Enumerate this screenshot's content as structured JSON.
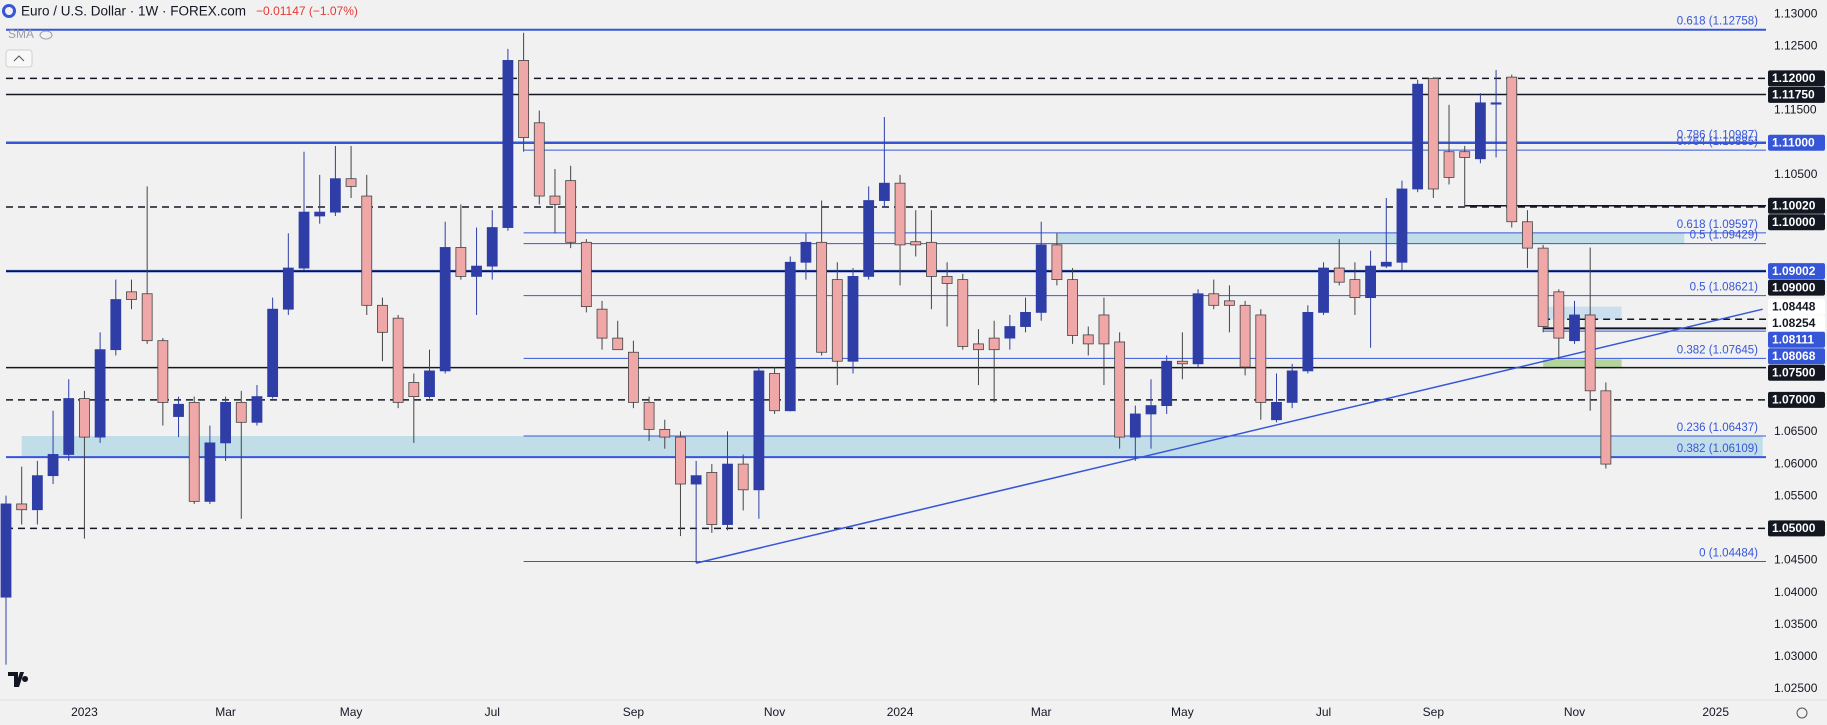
{
  "chart_data": {
    "type": "candlestick",
    "title": "Euro / U.S. Dollar · 1W · FOREX.com",
    "change": "−0.01147 (−1.07%)",
    "indicator": "SMA",
    "up_color": "#2e3ea6",
    "down_color": "#efa7a7",
    "categories": [
      null,
      null,
      null,
      null,
      null,
      "2023",
      null,
      null,
      null,
      null,
      null,
      null,
      null,
      null,
      "Mar",
      null,
      null,
      null,
      null,
      null,
      null,
      null,
      "May",
      null,
      null,
      null,
      null,
      null,
      null,
      null,
      null,
      "Jul",
      null,
      null,
      null,
      null,
      null,
      null,
      null,
      null,
      "Sep",
      null,
      null,
      null,
      null,
      null,
      null,
      null,
      null,
      "Nov",
      null,
      null,
      null,
      null,
      null,
      null,
      null,
      "2024",
      null,
      null,
      null,
      null,
      null,
      null,
      null,
      null,
      "Mar",
      null,
      null,
      null,
      null,
      null,
      null,
      null,
      null,
      "May",
      null,
      null,
      null,
      null,
      null,
      null,
      null,
      null,
      "Jul",
      null,
      null,
      null,
      null,
      null,
      null,
      "Sep",
      null,
      null,
      null,
      null,
      null,
      null,
      null,
      null,
      "Nov",
      null,
      null,
      null,
      null,
      null,
      null,
      null,
      null,
      "2025",
      null,
      null
    ],
    "open": [
      1.0393,
      1.0538,
      1.0529,
      1.0582,
      1.0615,
      1.0702,
      1.0642,
      1.0778,
      1.0868,
      1.0865,
      1.0792,
      1.0674,
      1.0696,
      1.0542,
      1.0633,
      1.0696,
      1.0665,
      1.0705,
      1.0841,
      1.0905,
      1.0986,
      1.0992,
      1.1044,
      1.1017,
      1.0847,
      1.0827,
      1.0727,
      1.0705,
      1.0745,
      1.0937,
      1.0892,
      1.0908,
      1.0968,
      1.1228,
      1.1131,
      1.1017,
      1.1041,
      1.0945,
      1.0841,
      1.0796,
      1.0774,
      1.0696,
      1.0654,
      1.0642,
      1.0569,
      1.0587,
      1.0506,
      1.06,
      1.056,
      1.0741,
      1.0683,
      1.0914,
      1.0945,
      1.0887,
      1.076,
      1.0892,
      1.101,
      1.1037,
      1.0946,
      1.0945,
      1.0892,
      1.0887,
      1.0787,
      1.0796,
      1.0796,
      1.0814,
      1.0836,
      1.0941,
      1.0887,
      1.0801,
      1.0832,
      1.079,
      1.0642,
      1.0678,
      1.0691,
      1.076,
      1.0756,
      1.0865,
      1.0854,
      1.0847,
      1.0832,
      1.0669,
      1.0696,
      1.0745,
      1.0836,
      1.0905,
      1.0887,
      1.0859,
      1.0908,
      1.0914,
      1.1028,
      1.12,
      1.1086,
      1.1086,
      1.1075,
      1.116,
      1.1202,
      1.0977,
      1.0936,
      1.0868,
      1.0792,
      1.0832,
      1.0714,
      null,
      null,
      null,
      null,
      null,
      null,
      null,
      null,
      null
    ],
    "high": [
      1.0551,
      1.0596,
      1.0605,
      1.0683,
      1.0732,
      1.0714,
      1.0805,
      1.0887,
      1.0887,
      1.1032,
      1.0796,
      1.0705,
      1.0705,
      1.066,
      1.0705,
      1.0714,
      1.0723,
      1.0859,
      1.0959,
      1.1086,
      1.105,
      1.1095,
      1.1095,
      1.105,
      1.0859,
      1.0832,
      1.0741,
      1.0778,
      1.0977,
      1.1004,
      1.0968,
      1.0995,
      1.1246,
      1.1271,
      1.115,
      1.1059,
      1.1064,
      1.095,
      1.0854,
      1.0823,
      1.0792,
      1.0705,
      1.0669,
      1.0651,
      1.0605,
      1.06,
      1.0651,
      1.0615,
      1.0751,
      1.0751,
      1.0923,
      1.0959,
      1.101,
      1.0914,
      1.0905,
      1.1032,
      1.114,
      1.105,
      1.0995,
      1.0995,
      1.0914,
      1.0896,
      1.081,
      1.0823,
      1.0832,
      1.0859,
      1.0977,
      1.0959,
      1.0905,
      1.0814,
      1.0859,
      1.0805,
      1.0691,
      1.0732,
      1.0769,
      1.0805,
      1.0872,
      1.0887,
      1.0878,
      1.0854,
      1.0841,
      1.0741,
      1.0756,
      1.0847,
      1.0914,
      1.095,
      1.0914,
      1.0932,
      1.1014,
      1.1041,
      1.1198,
      1.1202,
      1.1159,
      1.1095,
      1.1177,
      1.1213,
      1.1206,
      1.0995,
      1.0941,
      1.0872,
      1.0854,
      1.0937,
      1.0727,
      null,
      null,
      null,
      null,
      null,
      null,
      null,
      null,
      null
    ],
    "low": [
      1.0288,
      1.0506,
      1.0506,
      1.0569,
      1.0605,
      1.0484,
      1.0633,
      1.0769,
      1.0841,
      1.0787,
      1.066,
      1.0642,
      1.0538,
      1.0538,
      1.0605,
      1.0515,
      1.066,
      1.0702,
      1.0832,
      1.0901,
      1.0974,
      1.0986,
      1.1014,
      1.0832,
      1.076,
      1.0687,
      1.0633,
      1.0702,
      1.0741,
      1.0887,
      1.0832,
      1.0887,
      1.0963,
      1.1086,
      1.1004,
      1.0959,
      1.0936,
      1.0836,
      1.0778,
      1.0778,
      1.0687,
      1.0636,
      1.0624,
      1.0488,
      1.0446,
      1.0493,
      1.0497,
      1.0528,
      1.0515,
      1.0678,
      1.0682,
      1.0887,
      1.0769,
      1.0723,
      1.0741,
      1.0887,
      1.0999,
      1.0878,
      1.0923,
      1.0841,
      1.0814,
      1.0778,
      1.0723,
      1.0696,
      1.0778,
      1.0805,
      1.0823,
      1.0878,
      1.0787,
      1.0769,
      1.0723,
      1.0624,
      1.0605,
      1.0624,
      1.0678,
      1.0732,
      1.0751,
      1.0841,
      1.0805,
      1.0738,
      1.0669,
      1.0665,
      1.0687,
      1.0741,
      1.0832,
      1.0878,
      1.0832,
      1.0781,
      1.0905,
      1.0901,
      1.1023,
      1.1014,
      1.1035,
      1.0999,
      1.1068,
      1.1077,
      1.0968,
      1.0905,
      1.0805,
      1.0763,
      1.0787,
      1.0683,
      1.0593,
      null,
      null,
      null,
      null,
      null,
      null,
      null,
      null,
      null
    ],
    "close": [
      1.0538,
      1.0529,
      1.0582,
      1.0615,
      1.0702,
      1.0642,
      1.0778,
      1.0856,
      1.0856,
      1.0792,
      1.0696,
      1.0693,
      1.0542,
      1.0633,
      1.0696,
      1.0665,
      1.0705,
      1.0841,
      1.0905,
      1.0992,
      1.0992,
      1.1044,
      1.1032,
      1.0847,
      1.0805,
      1.0696,
      1.0705,
      1.0745,
      1.0937,
      1.0892,
      1.0908,
      1.0968,
      1.1228,
      1.1108,
      1.1017,
      1.1004,
      1.0945,
      1.0845,
      1.0796,
      1.0778,
      1.0696,
      1.0654,
      1.0642,
      1.0569,
      1.0582,
      1.0506,
      1.06,
      1.056,
      1.0745,
      1.0683,
      1.0914,
      1.0945,
      1.0774,
      1.076,
      1.0892,
      1.101,
      1.1037,
      1.0941,
      1.0941,
      1.0892,
      1.0881,
      1.0783,
      1.0778,
      1.0778,
      1.0814,
      1.0836,
      1.0941,
      1.0887,
      1.08,
      1.0787,
      1.0787,
      1.0642,
      1.0678,
      1.0691,
      1.076,
      1.0756,
      1.0865,
      1.0847,
      1.0847,
      1.0751,
      1.0696,
      1.0696,
      1.0745,
      1.0836,
      1.0905,
      1.0883,
      1.0859,
      1.0908,
      1.0914,
      1.1028,
      1.1191,
      1.1028,
      1.1046,
      1.1077,
      1.1162,
      1.1162,
      1.0977,
      1.0936,
      1.0814,
      1.0796,
      1.0832,
      1.0714,
      1.06,
      null,
      null,
      null,
      null,
      null,
      null,
      null,
      null,
      null
    ],
    "ylim": [
      1.0233,
      1.1322
    ],
    "yticks": [
      {
        "value": 1.13,
        "label": "1.13000"
      },
      {
        "value": 1.125,
        "label": "1.12500"
      },
      {
        "value": 1.115,
        "label": "1.11500"
      },
      {
        "value": 1.105,
        "label": "1.10500"
      },
      {
        "value": 1.065,
        "label": "1.06500"
      },
      {
        "value": 1.06,
        "label": "1.06000"
      },
      {
        "value": 1.055,
        "label": "1.05500"
      },
      {
        "value": 1.045,
        "label": "1.04500"
      },
      {
        "value": 1.04,
        "label": "1.04000"
      },
      {
        "value": 1.035,
        "label": "1.03500"
      },
      {
        "value": 1.03,
        "label": "1.03000"
      },
      {
        "value": 1.025,
        "label": "1.02500"
      }
    ],
    "grid": false,
    "zones": [
      {
        "from": 1,
        "to": 112,
        "low": 1.06109,
        "high": 1.06437,
        "color": "#b9dbe6"
      },
      {
        "from": 67,
        "to": 107,
        "low": 1.09429,
        "high": 1.09597,
        "color": "#b9dbe6"
      },
      {
        "from": 98,
        "to": 103,
        "low": 1.0825,
        "high": 1.0845,
        "color": "#c6dcef"
      },
      {
        "from": 98,
        "to": 103,
        "low": 1.0749,
        "high": 1.0763,
        "color": "#a8cf8e"
      }
    ],
    "levels": [
      {
        "value": 1.12758,
        "label": "0.618 (1.12758)",
        "color": "#3656d8",
        "width": 2,
        "style": "solid",
        "from": 0
      },
      {
        "value": 1.12,
        "color": "#131722",
        "width": 1.5,
        "style": "dashed",
        "from": 0
      },
      {
        "value": 1.1175,
        "color": "#131722",
        "width": 1.5,
        "style": "solid",
        "from": 0
      },
      {
        "value": 1.10987,
        "label": "0.786 (1.10987)",
        "color": "#3656d8",
        "width": 1,
        "style": "solid",
        "from": 33
      },
      {
        "value": 1.10885,
        "label": "0.764 (1.10885)",
        "color": "#3656d8",
        "width": 1,
        "style": "solid",
        "from": 33
      },
      {
        "value": 1.11,
        "color": "#3656d8",
        "width": 2.5,
        "style": "solid",
        "from": 0
      },
      {
        "value": 1.1,
        "color": "#131722",
        "width": 1.5,
        "style": "dashed",
        "from": 0
      },
      {
        "value": 1.1002,
        "color": "#131722",
        "width": 1.5,
        "style": "solid",
        "from": 93
      },
      {
        "value": 1.09597,
        "label": "0.618 (1.09597)",
        "color": "#3656d8",
        "width": 1,
        "style": "solid",
        "from": 33
      },
      {
        "value": 1.09429,
        "label": "0.5 (1.09429)",
        "color": "#3656d8",
        "width": 1,
        "style": "solid",
        "from": 33
      },
      {
        "value": 1.09002,
        "color": "#3656d8",
        "width": 2.5,
        "style": "solid",
        "from": 0
      },
      {
        "value": 1.09,
        "color": "#131722",
        "width": 1.5,
        "style": "solid",
        "from": 0
      },
      {
        "value": 1.08621,
        "label": "0.5 (1.08621)",
        "color": "#3656d8",
        "width": 1,
        "style": "solid",
        "from": 33
      },
      {
        "value": 1.08254,
        "color": "#131722",
        "width": 1.5,
        "style": "dashed",
        "from": 98
      },
      {
        "value": 1.08111,
        "color": "#131722",
        "width": 2,
        "style": "solid",
        "from": 98
      },
      {
        "value": 1.08068,
        "color": "#3656d8",
        "width": 1,
        "style": "solid",
        "from": 98
      },
      {
        "value": 1.07645,
        "label": "0.382 (1.07645)",
        "color": "#3656d8",
        "width": 1,
        "style": "solid",
        "from": 33
      },
      {
        "value": 1.075,
        "color": "#131722",
        "width": 1.5,
        "style": "solid",
        "from": 0
      },
      {
        "value": 1.07,
        "color": "#131722",
        "width": 1.5,
        "style": "dashed",
        "from": 0
      },
      {
        "value": 1.06437,
        "label": "0.236 (1.06437)",
        "color": "#3656d8",
        "width": 1,
        "style": "solid",
        "from": 33
      },
      {
        "value": 1.06109,
        "label": "0.382 (1.06109)",
        "color": "#3656d8",
        "width": 2,
        "style": "solid",
        "from": 0
      },
      {
        "value": 1.05,
        "color": "#131722",
        "width": 1.5,
        "style": "dashed",
        "from": 0
      },
      {
        "value": 1.04484,
        "label": "0 (1.04484)",
        "color": "#3656d8",
        "width": 1,
        "style": "solid",
        "from": 33
      }
    ],
    "trendline": {
      "x": [
        44,
        112
      ],
      "y": [
        1.0446,
        1.0841
      ],
      "color": "#3656d8"
    },
    "price_labels": [
      {
        "value": 1.12,
        "label": "1.12000",
        "color": "#131722",
        "text_color": "#ffffff"
      },
      {
        "value": 1.1175,
        "label": "1.11750",
        "color": "#131722",
        "text_color": "#ffffff"
      },
      {
        "value": 1.11,
        "label": "1.11000",
        "color": "#3656d8",
        "text_color": "#ffffff"
      },
      {
        "value": 1.1002,
        "label": "1.10020",
        "color": "#131722",
        "text_color": "#ffffff"
      },
      {
        "value": 1.1,
        "label": "1.10000",
        "color": "#131722",
        "text_color": "#ffffff"
      },
      {
        "value": 1.09002,
        "label": "1.09002",
        "color": "#3656d8",
        "text_color": "#ffffff"
      },
      {
        "value": 1.09,
        "label": "1.09000",
        "color": "#131722",
        "text_color": "#ffffff"
      },
      {
        "value": 1.08448,
        "label": "1.08448",
        "color": "#ffffff",
        "text_color": "#131722"
      },
      {
        "value": 1.08254,
        "label": "1.08254",
        "color": "#ffffff",
        "text_color": "#131722"
      },
      {
        "value": 1.08111,
        "label": "1.08111",
        "color": "#3656d8",
        "text_color": "#ffffff"
      },
      {
        "value": 1.08068,
        "label": "1.08068",
        "color": "#3656d8",
        "text_color": "#ffffff"
      },
      {
        "value": 1.075,
        "label": "1.07500",
        "color": "#131722",
        "text_color": "#ffffff"
      },
      {
        "value": 1.07,
        "label": "1.07000",
        "color": "#131722",
        "text_color": "#ffffff"
      },
      {
        "value": 1.05,
        "label": "1.05000",
        "color": "#131722",
        "text_color": "#ffffff"
      }
    ]
  }
}
